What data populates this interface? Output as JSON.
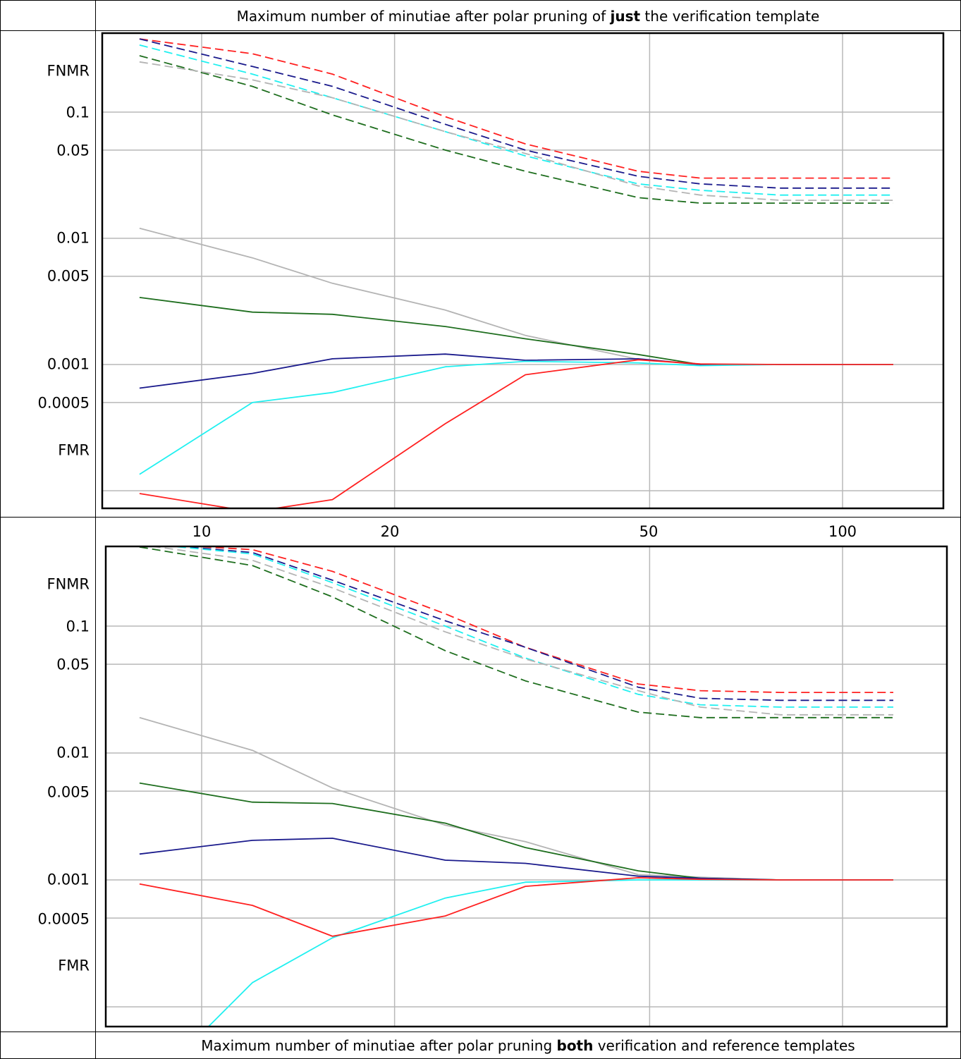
{
  "caption_top": {
    "prefix": "Maximum number of minutiae after polar pruning of ",
    "bold": "just",
    "suffix": " the verification template"
  },
  "caption_bottom": {
    "prefix": "Maximum number of minutiae after polar pruning ",
    "bold": "both",
    "suffix": " verification and reference templates"
  },
  "y_axis": {
    "fnmr_label": "FNMR",
    "fmr_label": "FMR",
    "tick_labels": [
      "0.1",
      "0.05",
      "0.01",
      "0.005",
      "0.001",
      "0.0005"
    ]
  },
  "x_axis": {
    "tick_labels": [
      "10",
      "20",
      "50",
      "100"
    ]
  },
  "colors": {
    "red": "#ff2020",
    "navy": "#1a1a8c",
    "cyan": "#20f0f0",
    "green": "#1e6e1e",
    "gray": "#b4b4b4",
    "grid": "#b8b8b8"
  },
  "chart_data": [
    {
      "type": "line",
      "title": "Maximum number of minutiae after polar pruning of just the verification template",
      "xscale": "log",
      "yscale": "log",
      "xlim": [
        7.4,
        130
      ],
      "ylim": [
        7e-05,
        0.35
      ],
      "xticks": [
        10,
        20,
        50,
        100
      ],
      "yticks": [
        0.1,
        0.05,
        0.01,
        0.005,
        0.001,
        0.0005
      ],
      "grid": true,
      "series": [
        {
          "color": "#ff2020",
          "style": "dashed",
          "x": [
            8,
            12,
            16,
            24,
            32,
            48,
            60,
            80,
            120
          ],
          "y": [
            0.38,
            0.29,
            0.2,
            0.092,
            0.056,
            0.034,
            0.03,
            0.03,
            0.03
          ]
        },
        {
          "color": "#1a1a8c",
          "style": "dashed",
          "x": [
            8,
            12,
            16,
            24,
            32,
            48,
            60,
            80,
            120
          ],
          "y": [
            0.38,
            0.23,
            0.16,
            0.08,
            0.05,
            0.031,
            0.027,
            0.025,
            0.025
          ]
        },
        {
          "color": "#20f0f0",
          "style": "dashed",
          "x": [
            8,
            12,
            16,
            24,
            32,
            48,
            60,
            80,
            120
          ],
          "y": [
            0.34,
            0.2,
            0.13,
            0.07,
            0.045,
            0.027,
            0.024,
            0.022,
            0.022
          ]
        },
        {
          "color": "#1e6e1e",
          "style": "dashed",
          "x": [
            8,
            12,
            16,
            24,
            32,
            48,
            60,
            80,
            120
          ],
          "y": [
            0.28,
            0.16,
            0.095,
            0.05,
            0.034,
            0.021,
            0.019,
            0.019,
            0.019
          ]
        },
        {
          "color": "#b4b4b4",
          "style": "dashed",
          "x": [
            8,
            12,
            16,
            24,
            32,
            48,
            60,
            80,
            120
          ],
          "y": [
            0.25,
            0.18,
            0.13,
            0.07,
            0.047,
            0.026,
            0.022,
            0.02,
            0.02
          ]
        },
        {
          "color": "#b4b4b4",
          "style": "solid",
          "x": [
            8,
            12,
            16,
            24,
            32,
            48,
            60,
            80,
            120
          ],
          "y": [
            0.012,
            0.007,
            0.0044,
            0.0027,
            0.0017,
            0.0011,
            0.001,
            0.001,
            0.001
          ]
        },
        {
          "color": "#1e6e1e",
          "style": "solid",
          "x": [
            8,
            12,
            16,
            24,
            32,
            48,
            60,
            80,
            120
          ],
          "y": [
            0.0034,
            0.0026,
            0.0025,
            0.002,
            0.0016,
            0.0012,
            0.001,
            0.001,
            0.001
          ]
        },
        {
          "color": "#1a1a8c",
          "style": "solid",
          "x": [
            8,
            12,
            16,
            24,
            32,
            48,
            60,
            80,
            120
          ],
          "y": [
            0.00065,
            0.00085,
            0.00111,
            0.00121,
            0.00108,
            0.00111,
            0.001,
            0.001,
            0.001
          ]
        },
        {
          "color": "#20f0f0",
          "style": "solid",
          "x": [
            8,
            12,
            16,
            24,
            32,
            48,
            60,
            80,
            120
          ],
          "y": [
            0.000135,
            0.0005,
            0.0006,
            0.00096,
            0.00106,
            0.00103,
            0.00098,
            0.001,
            0.001
          ]
        },
        {
          "color": "#ff2020",
          "style": "solid",
          "x": [
            8,
            12,
            16,
            24,
            32,
            48,
            60,
            80,
            120
          ],
          "y": [
            9.5e-05,
            6.8e-05,
            8.5e-05,
            0.00034,
            0.00083,
            0.00109,
            0.00101,
            0.001,
            0.001
          ]
        }
      ]
    },
    {
      "type": "line",
      "title": "Maximum number of minutiae after polar pruning both verification and reference templates",
      "xscale": "log",
      "yscale": "log",
      "xlim": [
        7.4,
        130
      ],
      "ylim": [
        7e-05,
        0.35
      ],
      "xticks": [
        10,
        20,
        50,
        100
      ],
      "yticks": [
        0.1,
        0.05,
        0.01,
        0.005,
        0.001,
        0.0005
      ],
      "grid": true,
      "series": [
        {
          "color": "#ff2020",
          "style": "dashed",
          "x": [
            8,
            12,
            16,
            24,
            32,
            48,
            60,
            80,
            120
          ],
          "y": [
            0.45,
            0.4,
            0.27,
            0.125,
            0.068,
            0.035,
            0.031,
            0.03,
            0.03
          ]
        },
        {
          "color": "#1a1a8c",
          "style": "dashed",
          "x": [
            8,
            12,
            16,
            24,
            32,
            48,
            60,
            80,
            120
          ],
          "y": [
            0.45,
            0.38,
            0.23,
            0.11,
            0.068,
            0.033,
            0.027,
            0.026,
            0.026
          ]
        },
        {
          "color": "#20f0f0",
          "style": "dashed",
          "x": [
            8,
            12,
            16,
            24,
            32,
            48,
            60,
            80,
            120
          ],
          "y": [
            0.45,
            0.37,
            0.22,
            0.1,
            0.056,
            0.029,
            0.024,
            0.023,
            0.023
          ]
        },
        {
          "color": "#1e6e1e",
          "style": "dashed",
          "x": [
            8,
            12,
            16,
            24,
            32,
            48,
            60,
            80,
            120
          ],
          "y": [
            0.42,
            0.3,
            0.17,
            0.064,
            0.037,
            0.021,
            0.019,
            0.019,
            0.019
          ]
        },
        {
          "color": "#b4b4b4",
          "style": "dashed",
          "x": [
            8,
            12,
            16,
            24,
            32,
            48,
            60,
            80,
            120
          ],
          "y": [
            0.44,
            0.33,
            0.2,
            0.09,
            0.055,
            0.031,
            0.023,
            0.02,
            0.02
          ]
        },
        {
          "color": "#b4b4b4",
          "style": "solid",
          "x": [
            8,
            12,
            16,
            24,
            32,
            48,
            60,
            80,
            120
          ],
          "y": [
            0.019,
            0.0105,
            0.0053,
            0.0027,
            0.002,
            0.0011,
            0.00105,
            0.001,
            0.001
          ]
        },
        {
          "color": "#1e6e1e",
          "style": "solid",
          "x": [
            8,
            12,
            16,
            24,
            32,
            48,
            60,
            80,
            120
          ],
          "y": [
            0.0058,
            0.0041,
            0.004,
            0.0028,
            0.0018,
            0.00118,
            0.00103,
            0.001,
            0.001
          ]
        },
        {
          "color": "#1a1a8c",
          "style": "solid",
          "x": [
            8,
            12,
            16,
            24,
            32,
            48,
            60,
            80,
            120
          ],
          "y": [
            0.0016,
            0.00205,
            0.00213,
            0.00143,
            0.00135,
            0.00107,
            0.00103,
            0.001,
            0.001
          ]
        },
        {
          "color": "#20f0f0",
          "style": "solid",
          "x": [
            8,
            12,
            16,
            24,
            32,
            48,
            60,
            80,
            120
          ],
          "y": [
            2e-05,
            0.000155,
            0.00035,
            0.00072,
            0.00096,
            0.001,
            0.001,
            0.001,
            0.001
          ]
        },
        {
          "color": "#ff2020",
          "style": "solid",
          "x": [
            8,
            12,
            16,
            24,
            32,
            48,
            60,
            80,
            120
          ],
          "y": [
            0.00093,
            0.00063,
            0.00036,
            0.00052,
            0.00089,
            0.00104,
            0.00101,
            0.001,
            0.001
          ]
        }
      ]
    }
  ]
}
